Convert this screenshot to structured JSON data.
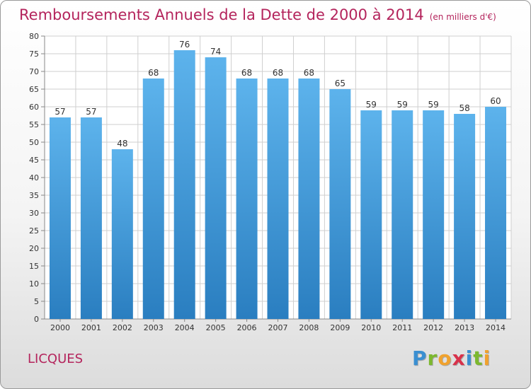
{
  "title": "Remboursements Annuels de la Dette de 2000 à 2014",
  "unit": "(en milliers d'€)",
  "commune": "LICQUES",
  "brand": {
    "letters": [
      {
        "char": "P",
        "color": "#3a8fd1"
      },
      {
        "char": "r",
        "color": "#7cb82f"
      },
      {
        "char": "o",
        "color": "#f0a22e"
      },
      {
        "char": "x",
        "color": "#d8324b"
      },
      {
        "char": "i",
        "color": "#3a8fd1"
      },
      {
        "char": "t",
        "color": "#7cb82f"
      },
      {
        "char": "i",
        "color": "#f0a22e"
      }
    ]
  },
  "colors": {
    "title": "#b4245c",
    "bar_top": "#5db3ec",
    "bar_bottom": "#2a7ec0",
    "grid": "#cfcfcf"
  },
  "chart_data": {
    "type": "bar",
    "categories": [
      "2000",
      "2001",
      "2002",
      "2003",
      "2004",
      "2005",
      "2006",
      "2007",
      "2008",
      "2009",
      "2010",
      "2011",
      "2012",
      "2013",
      "2014"
    ],
    "values": [
      57,
      57,
      48,
      68,
      76,
      74,
      68,
      68,
      68,
      65,
      59,
      59,
      59,
      58,
      60
    ],
    "ylim": [
      0,
      80
    ],
    "ytick_step": 5,
    "grid": true,
    "legend": "none",
    "xlabel": "",
    "ylabel": ""
  }
}
